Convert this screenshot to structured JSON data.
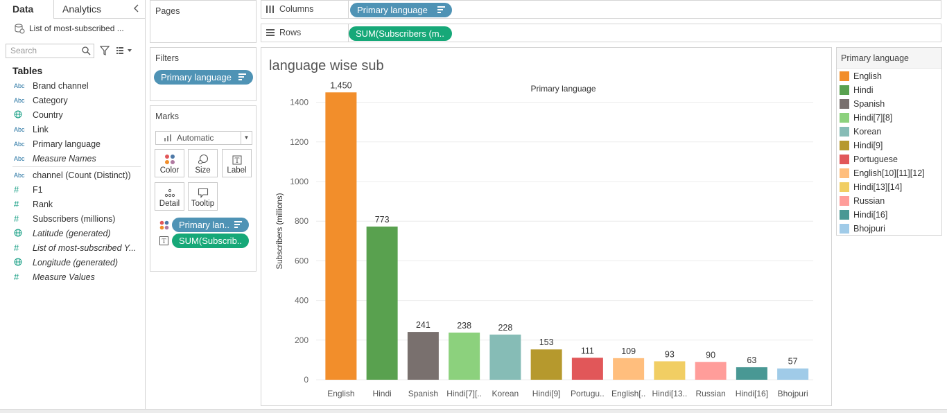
{
  "data_pane": {
    "tab_data": "Data",
    "tab_analytics": "Analytics",
    "collapse_icon": "chevron-left-icon",
    "datasource": "List of most-subscribed ...",
    "search_placeholder": "Search",
    "tables_title": "Tables",
    "fields_dimensions": [
      {
        "type": "Abc",
        "name": "Brand channel",
        "italic": false
      },
      {
        "type": "Abc",
        "name": "Category",
        "italic": false
      },
      {
        "type": "globe",
        "name": "Country",
        "italic": false
      },
      {
        "type": "Abc",
        "name": "Link",
        "italic": false
      },
      {
        "type": "Abc",
        "name": "Primary language",
        "italic": false
      },
      {
        "type": "Abc",
        "name": "Measure Names",
        "italic": true
      }
    ],
    "fields_measures": [
      {
        "type": "Abc",
        "name": "channel (Count (Distinct))",
        "italic": false
      },
      {
        "type": "#",
        "name": "F1",
        "italic": false
      },
      {
        "type": "#",
        "name": "Rank",
        "italic": false
      },
      {
        "type": "#",
        "name": "Subscribers (millions)",
        "italic": false
      },
      {
        "type": "globe",
        "name": "Latitude (generated)",
        "italic": true
      },
      {
        "type": "#",
        "name": "List of most-subscribed Y...",
        "italic": true
      },
      {
        "type": "globe",
        "name": "Longitude (generated)",
        "italic": true
      },
      {
        "type": "#",
        "name": "Measure Values",
        "italic": true
      }
    ]
  },
  "pages_card": {
    "title": "Pages"
  },
  "filters_card": {
    "title": "Filters",
    "pill": "Primary language"
  },
  "marks_card": {
    "title": "Marks",
    "mark_type": "Automatic",
    "buttons": {
      "color": "Color",
      "size": "Size",
      "label": "Label",
      "detail": "Detail",
      "tooltip": "Tooltip"
    },
    "color_pill": "Primary lan..",
    "label_pill": "SUM(Subscrib.."
  },
  "columns_shelf": {
    "label": "Columns",
    "pill": "Primary language"
  },
  "rows_shelf": {
    "label": "Rows",
    "pill": "SUM(Subscribers (m.."
  },
  "view": {
    "title": "language wise sub"
  },
  "legend": {
    "title": "Primary language",
    "items": [
      {
        "label": "English",
        "color": "#f28e2b"
      },
      {
        "label": "Hindi",
        "color": "#59a14f"
      },
      {
        "label": "Spanish",
        "color": "#79706e"
      },
      {
        "label": "Hindi[7][8]",
        "color": "#8cd17d"
      },
      {
        "label": "Korean",
        "color": "#86bcb6"
      },
      {
        "label": "Hindi[9]",
        "color": "#b6992d"
      },
      {
        "label": "Portuguese",
        "color": "#e15759"
      },
      {
        "label": "English[10][11][12]",
        "color": "#ffbe7d"
      },
      {
        "label": "Hindi[13][14]",
        "color": "#f1ce63"
      },
      {
        "label": "Russian",
        "color": "#ff9d9a"
      },
      {
        "label": "Hindi[16]",
        "color": "#499894"
      },
      {
        "label": "Bhojpuri",
        "color": "#a0cbe8"
      }
    ]
  },
  "chart_data": {
    "type": "bar",
    "title": "Primary language",
    "ylabel": "Subscribers (millions)",
    "xlabel": "",
    "ylim": [
      0,
      1500
    ],
    "yticks": [
      0,
      200,
      400,
      600,
      800,
      1000,
      1200,
      1400
    ],
    "grid": true,
    "categories": [
      "English",
      "Hindi",
      "Spanish",
      "Hindi[7][..",
      "Korean",
      "Hindi[9]",
      "Portugu..",
      "English[..",
      "Hindi[13..",
      "Russian",
      "Hindi[16]",
      "Bhojpuri"
    ],
    "values": [
      1450,
      773,
      241,
      238,
      228,
      153,
      111,
      109,
      93,
      90,
      63,
      57
    ],
    "value_labels": [
      "1,450",
      "773",
      "241",
      "238",
      "228",
      "153",
      "111",
      "109",
      "93",
      "90",
      "63",
      "57"
    ],
    "colors": [
      "#f28e2b",
      "#59a14f",
      "#79706e",
      "#8cd17d",
      "#86bcb6",
      "#b6992d",
      "#e15759",
      "#ffbe7d",
      "#f1ce63",
      "#ff9d9a",
      "#499894",
      "#a0cbe8"
    ]
  }
}
